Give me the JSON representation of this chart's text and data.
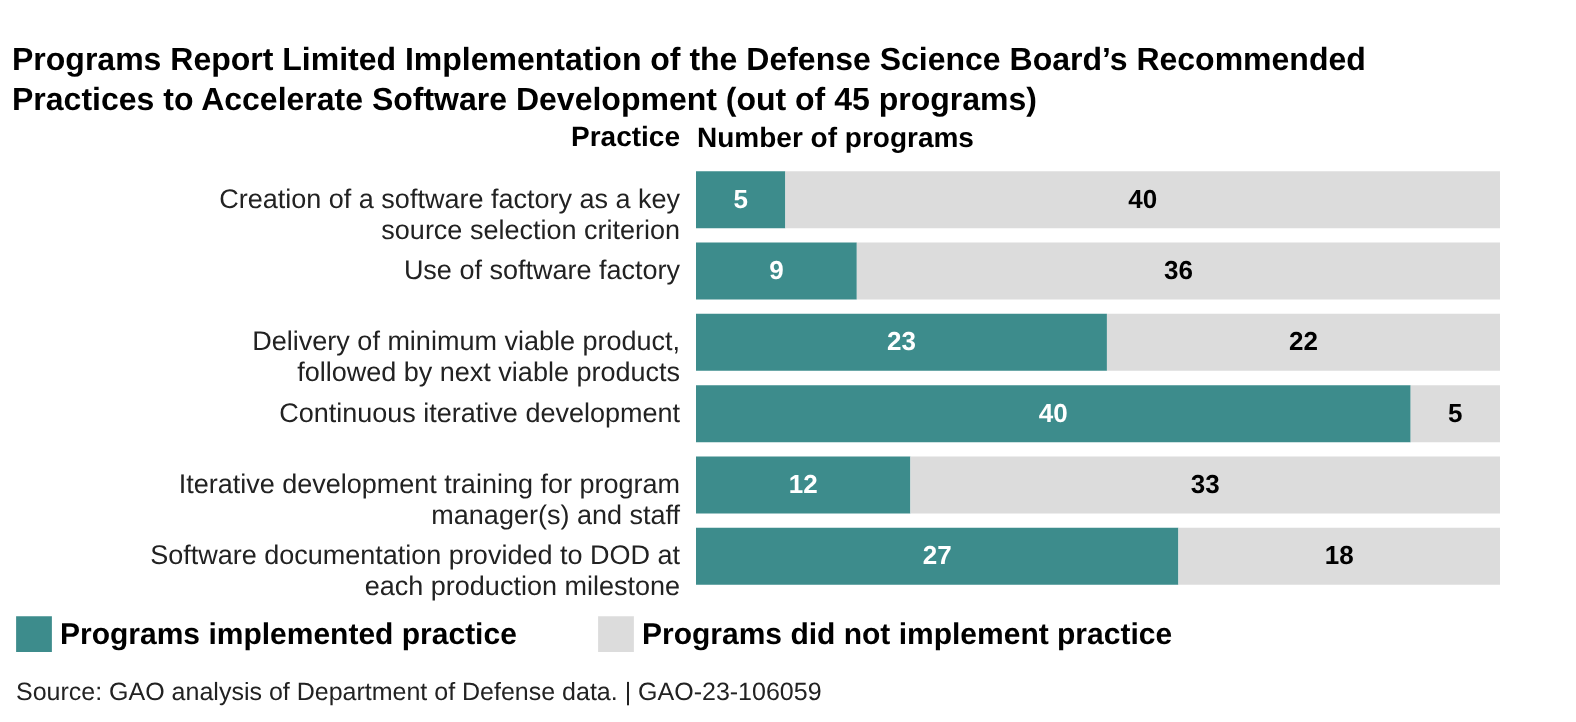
{
  "chart_data": {
    "type": "bar",
    "orientation": "horizontal",
    "stacked": true,
    "data_labels": true,
    "title": "Programs Report Limited Implementation of the Defense Science Board’s Recommended Practices to Accelerate Software Development (out of 45 programs)",
    "xlabel": "Number of programs",
    "ylabel": "Practice",
    "categories": [
      "Creation of a software factory as a key source selection criterion",
      "Use of software factory",
      "Delivery of minimum viable product, followed by next viable products",
      "Continuous iterative development",
      "Iterative development training for program manager(s) and staff",
      "Software documentation provided to DOD at each production milestone"
    ],
    "series": [
      {
        "name": "Programs implemented practice",
        "color": "#3d8c8c",
        "values": [
          5,
          9,
          23,
          40,
          12,
          27
        ]
      },
      {
        "name": "Programs did not implement practice",
        "color": "#dcdcdc",
        "values": [
          40,
          36,
          22,
          5,
          33,
          18
        ]
      }
    ],
    "xlim": [
      0,
      45
    ],
    "tick_labels": "y",
    "grid": false,
    "legend": "bottom left",
    "annotations": [
      "Source: GAO analysis of Department of Defense data. | GAO-23-106059"
    ]
  }
}
